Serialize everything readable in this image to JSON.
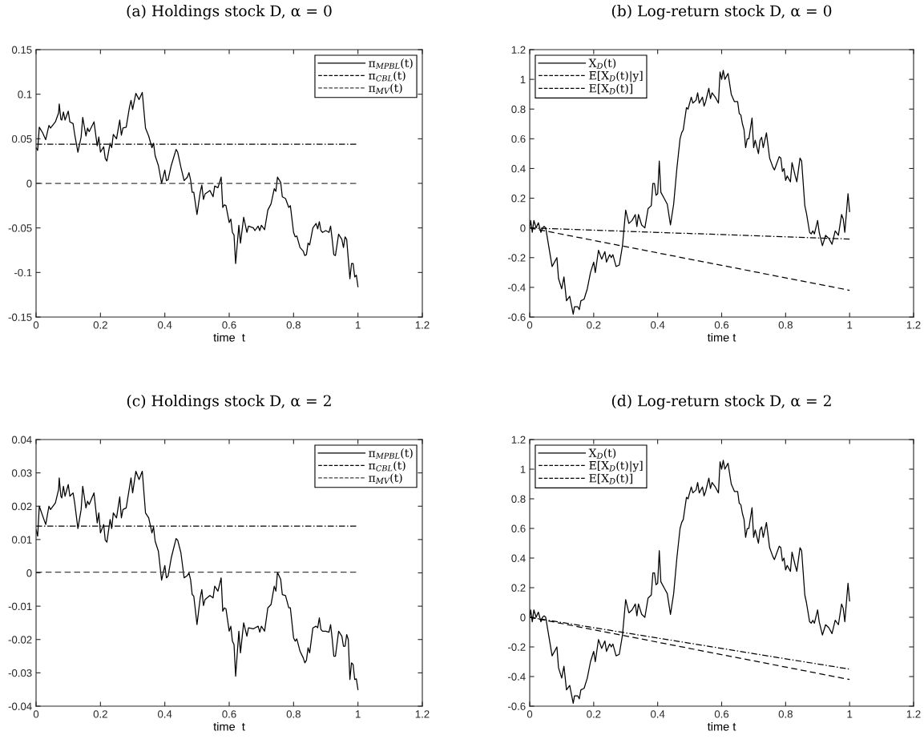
{
  "chart_data": [
    {
      "type": "line",
      "title": "(a) Holdings stock D, α = 0",
      "xlabel": "time  t",
      "xlim": [
        0,
        1.2
      ],
      "xticks": [
        0,
        0.2,
        0.4,
        0.6,
        0.8,
        1,
        1.2
      ],
      "ylim": [
        -0.15,
        0.15
      ],
      "yticks": [
        -0.15,
        -0.1,
        -0.05,
        0,
        0.05,
        0.1,
        0.15
      ],
      "legend": "top right",
      "grid": false,
      "series": [
        {
          "name": "π$_{MPBL}$(t)",
          "color": "#000000",
          "line_style": "solid",
          "x": [
            0,
            0.005,
            0.01,
            0.02,
            0.03,
            0.04,
            0.045,
            0.06,
            0.07,
            0.072,
            0.077,
            0.08,
            0.085,
            0.09,
            0.1,
            0.105,
            0.115,
            0.12,
            0.13,
            0.14,
            0.145,
            0.155,
            0.16,
            0.165,
            0.18,
            0.19,
            0.195,
            0.2,
            0.21,
            0.215,
            0.22,
            0.23,
            0.235,
            0.24,
            0.25,
            0.26,
            0.265,
            0.27,
            0.28,
            0.29,
            0.295,
            0.3,
            0.31,
            0.32,
            0.33,
            0.34,
            0.35,
            0.36,
            0.365,
            0.37,
            0.38,
            0.39,
            0.4,
            0.405,
            0.41,
            0.42,
            0.435,
            0.44,
            0.45,
            0.46,
            0.47,
            0.475,
            0.48,
            0.485,
            0.49,
            0.5,
            0.51,
            0.515,
            0.52,
            0.525,
            0.54,
            0.55,
            0.555,
            0.565,
            0.575,
            0.58,
            0.585,
            0.59,
            0.6,
            0.605,
            0.61,
            0.615,
            0.62,
            0.63,
            0.635,
            0.645,
            0.655,
            0.66,
            0.675,
            0.68,
            0.69,
            0.695,
            0.7,
            0.71,
            0.72,
            0.73,
            0.74,
            0.745,
            0.75,
            0.76,
            0.765,
            0.775,
            0.785,
            0.79,
            0.8,
            0.805,
            0.81,
            0.82,
            0.83,
            0.835,
            0.84,
            0.845,
            0.85,
            0.86,
            0.87,
            0.875,
            0.88,
            0.885,
            0.89,
            0.9,
            0.91,
            0.915,
            0.92,
            0.925,
            0.93,
            0.94,
            0.95,
            0.955,
            0.96,
            0.965,
            0.975,
            0.98,
            0.985,
            0.99,
            0.995,
            1
          ],
          "values": [
            0.04,
            0.037,
            0.063,
            0.057,
            0.049,
            0.065,
            0.062,
            0.069,
            0.079,
            0.089,
            0.072,
            0.071,
            0.08,
            0.071,
            0.081,
            0.069,
            0.067,
            0.055,
            0.035,
            0.052,
            0.074,
            0.053,
            0.062,
            0.058,
            0.069,
            0.042,
            0.052,
            0.035,
            0.041,
            0.028,
            0.025,
            0.045,
            0.04,
            0.055,
            0.05,
            0.071,
            0.054,
            0.062,
            0.063,
            0.085,
            0.093,
            0.083,
            0.101,
            0.094,
            0.102,
            0.062,
            0.053,
            0.04,
            0.045,
            0.031,
            0.02,
            0,
            0.015,
            0.003,
            0.004,
            0.02,
            0.038,
            0.035,
            0.018,
            0.003,
            0.007,
            0.012,
            0.004,
            -0.01,
            -0.01,
            -0.035,
            -0.01,
            -0.002,
            -0.018,
            -0.012,
            -0.008,
            -0.015,
            -0.003,
            -0.005,
            0.007,
            -0.027,
            -0.024,
            -0.025,
            -0.044,
            -0.04,
            -0.055,
            -0.058,
            -0.09,
            -0.047,
            -0.067,
            -0.038,
            -0.055,
            -0.048,
            -0.05,
            -0.053,
            -0.048,
            -0.053,
            -0.047,
            -0.052,
            -0.03,
            -0.023,
            -0.006,
            -0.009,
            0.007,
            0.001,
            -0.015,
            -0.017,
            -0.027,
            -0.025,
            -0.055,
            -0.06,
            -0.059,
            -0.072,
            -0.076,
            -0.081,
            -0.08,
            -0.067,
            -0.069,
            -0.05,
            -0.045,
            -0.051,
            -0.043,
            -0.053,
            -0.055,
            -0.053,
            -0.055,
            -0.048,
            -0.063,
            -0.08,
            -0.081,
            -0.057,
            -0.063,
            -0.072,
            -0.06,
            -0.063,
            -0.107,
            -0.09,
            -0.09,
            -0.105,
            -0.103,
            -0.116
          ]
        },
        {
          "name": "π$_{CBL}$(t)",
          "color": "#000000",
          "line_style": "dashdot",
          "x": [
            0,
            1
          ],
          "values": [
            0.044,
            0.044
          ]
        },
        {
          "name": "π$_{MV}$(t)",
          "color": "#404040",
          "line_style": "dashed",
          "x": [
            0,
            1
          ],
          "values": [
            0,
            0
          ]
        }
      ]
    },
    {
      "type": "line",
      "title": "(b) Log-return stock D, α = 0",
      "xlabel": "time t",
      "xlim": [
        0,
        1.2
      ],
      "xticks": [
        0,
        0.2,
        0.4,
        0.6,
        0.8,
        1,
        1.2
      ],
      "ylim": [
        -0.6,
        1.2
      ],
      "yticks": [
        -0.6,
        -0.4,
        -0.2,
        0,
        0.2,
        0.4,
        0.6,
        0.8,
        1,
        1.2
      ],
      "legend": "top left",
      "grid": false,
      "series": [
        {
          "name": "X$_{D}$(t)",
          "color": "#000000",
          "line_style": "solid",
          "x": [
            0,
            0.003,
            0.008,
            0.013,
            0.02,
            0.027,
            0.035,
            0.04,
            0.045,
            0.05,
            0.06,
            0.07,
            0.085,
            0.09,
            0.1,
            0.107,
            0.115,
            0.125,
            0.136,
            0.14,
            0.15,
            0.155,
            0.16,
            0.17,
            0.18,
            0.19,
            0.2,
            0.205,
            0.215,
            0.225,
            0.235,
            0.24,
            0.25,
            0.255,
            0.26,
            0.27,
            0.28,
            0.29,
            0.3,
            0.31,
            0.32,
            0.33,
            0.335,
            0.34,
            0.35,
            0.36,
            0.37,
            0.38,
            0.385,
            0.39,
            0.395,
            0.4,
            0.405,
            0.41,
            0.42,
            0.43,
            0.44,
            0.45,
            0.46,
            0.47,
            0.475,
            0.48,
            0.49,
            0.495,
            0.505,
            0.51,
            0.52,
            0.525,
            0.53,
            0.54,
            0.545,
            0.55,
            0.56,
            0.565,
            0.57,
            0.58,
            0.59,
            0.595,
            0.6,
            0.605,
            0.61,
            0.62,
            0.63,
            0.64,
            0.65,
            0.655,
            0.66,
            0.665,
            0.67,
            0.675,
            0.68,
            0.685,
            0.695,
            0.7,
            0.705,
            0.715,
            0.72,
            0.725,
            0.73,
            0.74,
            0.75,
            0.76,
            0.765,
            0.77,
            0.78,
            0.785,
            0.79,
            0.795,
            0.8,
            0.805,
            0.815,
            0.82,
            0.83,
            0.835,
            0.845,
            0.85,
            0.86,
            0.865,
            0.875,
            0.88,
            0.885,
            0.89,
            0.9,
            0.905,
            0.915,
            0.925,
            0.935,
            0.945,
            0.955,
            0.965,
            0.975,
            0.98,
            0.985,
            0.995,
            1
          ],
          "values": [
            0,
            0.05,
            -0.03,
            0.05,
            0,
            0.035,
            -0.03,
            0,
            0.01,
            0,
            -0.13,
            -0.26,
            -0.2,
            -0.34,
            -0.41,
            -0.33,
            -0.49,
            -0.46,
            -0.58,
            -0.53,
            -0.53,
            -0.55,
            -0.49,
            -0.48,
            -0.41,
            -0.3,
            -0.23,
            -0.3,
            -0.15,
            -0.21,
            -0.16,
            -0.23,
            -0.18,
            -0.2,
            -0.18,
            -0.26,
            -0.25,
            -0.12,
            0.12,
            0.03,
            0.05,
            0.09,
            0.01,
            0.09,
            0.02,
            0,
            0.13,
            0.15,
            0.3,
            0.3,
            0.22,
            0.23,
            0.45,
            0.24,
            0.2,
            0.16,
            0.02,
            0.16,
            0.4,
            0.6,
            0.64,
            0.66,
            0.81,
            0.8,
            0.88,
            0.84,
            0.86,
            0.91,
            0.84,
            0.88,
            0.82,
            0.85,
            0.94,
            0.87,
            0.91,
            0.88,
            0.84,
            1.05,
            1,
            1.06,
            1,
            1.04,
            0.9,
            0.85,
            0.85,
            0.77,
            0.76,
            0.7,
            0.66,
            0.54,
            0.6,
            0.6,
            0.74,
            0.54,
            0.59,
            0.5,
            0.59,
            0.61,
            0.54,
            0.64,
            0.47,
            0.41,
            0.39,
            0.42,
            0.48,
            0.47,
            0.38,
            0.4,
            0.32,
            0.35,
            0.31,
            0.44,
            0.35,
            0.31,
            0.47,
            0.45,
            0.15,
            0.1,
            -0.03,
            -0.04,
            -0.02,
            -0.04,
            0.05,
            -0.03,
            -0.12,
            -0.05,
            -0.07,
            -0.11,
            -0.02,
            -0.05,
            0.09,
            0.06,
            -0.03,
            0.23,
            0.11
          ]
        },
        {
          "name": "E[X$_{D}$(t)|y]",
          "color": "#000000",
          "line_style": "dashdot",
          "x": [
            0,
            1
          ],
          "values": [
            0,
            -0.075
          ]
        },
        {
          "name": "E[X$_{D}$(t)]",
          "color": "#000000",
          "line_style": "dashed",
          "x": [
            0,
            1
          ],
          "values": [
            0,
            -0.42
          ]
        }
      ]
    },
    {
      "type": "line",
      "title": "(c) Holdings stock D, α = 2",
      "xlabel": "time  t",
      "xlim": [
        0,
        1.2
      ],
      "xticks": [
        0,
        0.2,
        0.4,
        0.6,
        0.8,
        1,
        1.2
      ],
      "ylim": [
        -0.04,
        0.04
      ],
      "yticks": [
        -0.04,
        -0.03,
        -0.02,
        -0.01,
        0,
        0.01,
        0.02,
        0.03,
        0.04
      ],
      "legend": "top right",
      "grid": false,
      "series": [
        {
          "name": "π$_{MPBL}$(t)",
          "color": "#000000",
          "line_style": "solid",
          "x": [
            0,
            0.005,
            0.01,
            0.03,
            0.04,
            0.045,
            0.06,
            0.07,
            0.072,
            0.077,
            0.08,
            0.085,
            0.09,
            0.1,
            0.105,
            0.115,
            0.12,
            0.13,
            0.14,
            0.145,
            0.155,
            0.16,
            0.165,
            0.18,
            0.19,
            0.195,
            0.2,
            0.21,
            0.215,
            0.22,
            0.23,
            0.235,
            0.24,
            0.25,
            0.26,
            0.265,
            0.27,
            0.28,
            0.29,
            0.295,
            0.3,
            0.31,
            0.32,
            0.33,
            0.34,
            0.35,
            0.36,
            0.365,
            0.37,
            0.38,
            0.39,
            0.4,
            0.405,
            0.41,
            0.42,
            0.435,
            0.44,
            0.45,
            0.46,
            0.47,
            0.475,
            0.48,
            0.485,
            0.49,
            0.5,
            0.51,
            0.515,
            0.52,
            0.525,
            0.54,
            0.55,
            0.555,
            0.565,
            0.575,
            0.58,
            0.585,
            0.59,
            0.6,
            0.605,
            0.61,
            0.615,
            0.62,
            0.63,
            0.635,
            0.645,
            0.655,
            0.66,
            0.675,
            0.68,
            0.69,
            0.695,
            0.7,
            0.71,
            0.72,
            0.73,
            0.74,
            0.745,
            0.75,
            0.76,
            0.765,
            0.775,
            0.785,
            0.79,
            0.8,
            0.805,
            0.81,
            0.82,
            0.83,
            0.835,
            0.84,
            0.845,
            0.85,
            0.86,
            0.87,
            0.875,
            0.88,
            0.885,
            0.89,
            0.9,
            0.91,
            0.915,
            0.92,
            0.925,
            0.93,
            0.94,
            0.95,
            0.955,
            0.96,
            0.965,
            0.97,
            0.975,
            0.98,
            0.985,
            0.99,
            0.995,
            1
          ],
          "values": [
            0.013,
            0.011,
            0.02,
            0.0145,
            0.02,
            0.019,
            0.021,
            0.025,
            0.0285,
            0.023,
            0.0225,
            0.026,
            0.023,
            0.0265,
            0.023,
            0.024,
            0.021,
            0.0133,
            0.019,
            0.026,
            0.0195,
            0.0215,
            0.0205,
            0.024,
            0.015,
            0.018,
            0.012,
            0.0145,
            0.0098,
            0.0092,
            0.016,
            0.0133,
            0.018,
            0.0165,
            0.0228,
            0.0165,
            0.019,
            0.0195,
            0.0255,
            0.0285,
            0.024,
            0.0305,
            0.028,
            0.0305,
            0.018,
            0.0165,
            0.012,
            0.0138,
            0.0095,
            0.0065,
            -0.0022,
            0.0022,
            -0.0015,
            -0.001,
            0.0045,
            0.0103,
            0.0098,
            0.006,
            -0.0015,
            -0.0008,
            0,
            -0.002,
            -0.0065,
            -0.007,
            -0.0155,
            -0.0075,
            -0.005,
            -0.0098,
            -0.008,
            -0.0068,
            -0.0075,
            -0.004,
            -0.0055,
            -0.0015,
            -0.0115,
            -0.0105,
            -0.0108,
            -0.0175,
            -0.016,
            -0.0205,
            -0.0215,
            -0.031,
            -0.0175,
            -0.024,
            -0.015,
            -0.019,
            -0.0165,
            -0.0168,
            -0.0165,
            -0.016,
            -0.0178,
            -0.016,
            -0.0175,
            -0.0105,
            -0.0095,
            -0.004,
            -0.0055,
            0.0002,
            -0.002,
            -0.0065,
            -0.0068,
            -0.0105,
            -0.0105,
            -0.0195,
            -0.0205,
            -0.0198,
            -0.0235,
            -0.0255,
            -0.027,
            -0.0262,
            -0.0225,
            -0.024,
            -0.0165,
            -0.016,
            -0.0165,
            -0.0135,
            -0.017,
            -0.0175,
            -0.0175,
            -0.0178,
            -0.0155,
            -0.0198,
            -0.025,
            -0.025,
            -0.0175,
            -0.019,
            -0.022,
            -0.022,
            -0.0185,
            -0.02,
            -0.032,
            -0.027,
            -0.0275,
            -0.032,
            -0.0318,
            -0.035
          ]
        },
        {
          "name": "π$_{CBL}$(t)",
          "color": "#000000",
          "line_style": "dashdot",
          "x": [
            0,
            1
          ],
          "values": [
            0.014,
            0.014
          ]
        },
        {
          "name": "π$_{MV}$(t)",
          "color": "#404040",
          "line_style": "dashed",
          "x": [
            0,
            1
          ],
          "values": [
            0.0002,
            0.0002
          ]
        }
      ]
    },
    {
      "type": "line",
      "title": "(d) Log-return stock D, α = 2",
      "xlabel": "time t",
      "xlim": [
        0,
        1.2
      ],
      "xticks": [
        0,
        0.2,
        0.4,
        0.6,
        0.8,
        1,
        1.2
      ],
      "ylim": [
        -0.6,
        1.2
      ],
      "yticks": [
        -0.6,
        -0.4,
        -0.2,
        0,
        0.2,
        0.4,
        0.6,
        0.8,
        1,
        1.2
      ],
      "legend": "top left",
      "grid": false,
      "series": [
        {
          "name": "X$_{D}$(t)",
          "color": "#000000",
          "line_style": "solid",
          "x": [
            0,
            0.003,
            0.008,
            0.013,
            0.02,
            0.027,
            0.035,
            0.04,
            0.045,
            0.05,
            0.06,
            0.07,
            0.085,
            0.09,
            0.1,
            0.107,
            0.115,
            0.125,
            0.136,
            0.14,
            0.15,
            0.155,
            0.16,
            0.17,
            0.18,
            0.19,
            0.2,
            0.205,
            0.215,
            0.225,
            0.235,
            0.24,
            0.25,
            0.255,
            0.26,
            0.27,
            0.28,
            0.29,
            0.3,
            0.31,
            0.32,
            0.33,
            0.335,
            0.34,
            0.35,
            0.36,
            0.37,
            0.38,
            0.385,
            0.39,
            0.395,
            0.4,
            0.405,
            0.41,
            0.42,
            0.43,
            0.44,
            0.45,
            0.46,
            0.47,
            0.475,
            0.48,
            0.49,
            0.495,
            0.505,
            0.51,
            0.52,
            0.525,
            0.53,
            0.54,
            0.545,
            0.55,
            0.56,
            0.565,
            0.57,
            0.58,
            0.59,
            0.595,
            0.6,
            0.605,
            0.61,
            0.62,
            0.63,
            0.64,
            0.65,
            0.655,
            0.66,
            0.665,
            0.67,
            0.675,
            0.68,
            0.685,
            0.695,
            0.7,
            0.705,
            0.715,
            0.72,
            0.725,
            0.73,
            0.74,
            0.75,
            0.76,
            0.765,
            0.77,
            0.78,
            0.785,
            0.79,
            0.795,
            0.8,
            0.805,
            0.815,
            0.82,
            0.83,
            0.835,
            0.845,
            0.85,
            0.86,
            0.865,
            0.875,
            0.88,
            0.885,
            0.89,
            0.9,
            0.905,
            0.915,
            0.925,
            0.935,
            0.945,
            0.955,
            0.965,
            0.975,
            0.98,
            0.985,
            0.995,
            1
          ],
          "values": [
            0,
            0.05,
            -0.03,
            0.05,
            0,
            0.035,
            -0.03,
            0,
            0.01,
            0,
            -0.13,
            -0.26,
            -0.2,
            -0.34,
            -0.41,
            -0.33,
            -0.49,
            -0.46,
            -0.58,
            -0.53,
            -0.53,
            -0.55,
            -0.49,
            -0.48,
            -0.41,
            -0.3,
            -0.23,
            -0.3,
            -0.15,
            -0.21,
            -0.16,
            -0.23,
            -0.18,
            -0.2,
            -0.18,
            -0.26,
            -0.25,
            -0.12,
            0.12,
            0.03,
            0.05,
            0.09,
            0.01,
            0.09,
            0.02,
            0,
            0.13,
            0.15,
            0.3,
            0.3,
            0.22,
            0.23,
            0.45,
            0.24,
            0.2,
            0.16,
            0.02,
            0.16,
            0.4,
            0.6,
            0.64,
            0.66,
            0.81,
            0.8,
            0.88,
            0.84,
            0.86,
            0.91,
            0.84,
            0.88,
            0.82,
            0.85,
            0.94,
            0.87,
            0.91,
            0.88,
            0.84,
            1.05,
            1,
            1.06,
            1,
            1.04,
            0.9,
            0.85,
            0.85,
            0.77,
            0.76,
            0.7,
            0.66,
            0.54,
            0.6,
            0.6,
            0.74,
            0.54,
            0.59,
            0.5,
            0.59,
            0.61,
            0.54,
            0.64,
            0.47,
            0.41,
            0.39,
            0.42,
            0.48,
            0.47,
            0.38,
            0.4,
            0.32,
            0.35,
            0.31,
            0.44,
            0.35,
            0.31,
            0.47,
            0.45,
            0.15,
            0.1,
            -0.03,
            -0.04,
            -0.02,
            -0.04,
            0.05,
            -0.03,
            -0.12,
            -0.05,
            -0.07,
            -0.11,
            -0.02,
            -0.05,
            0.09,
            0.06,
            -0.03,
            0.23,
            0.11
          ]
        },
        {
          "name": "E[X$_{D}$(t)|y]",
          "color": "#000000",
          "line_style": "dashdot",
          "x": [
            0,
            1
          ],
          "values": [
            0,
            -0.35
          ]
        },
        {
          "name": "E[X$_{D}$(t)]",
          "color": "#000000",
          "line_style": "dashed",
          "x": [
            0,
            1
          ],
          "values": [
            0,
            -0.42
          ]
        }
      ]
    }
  ]
}
